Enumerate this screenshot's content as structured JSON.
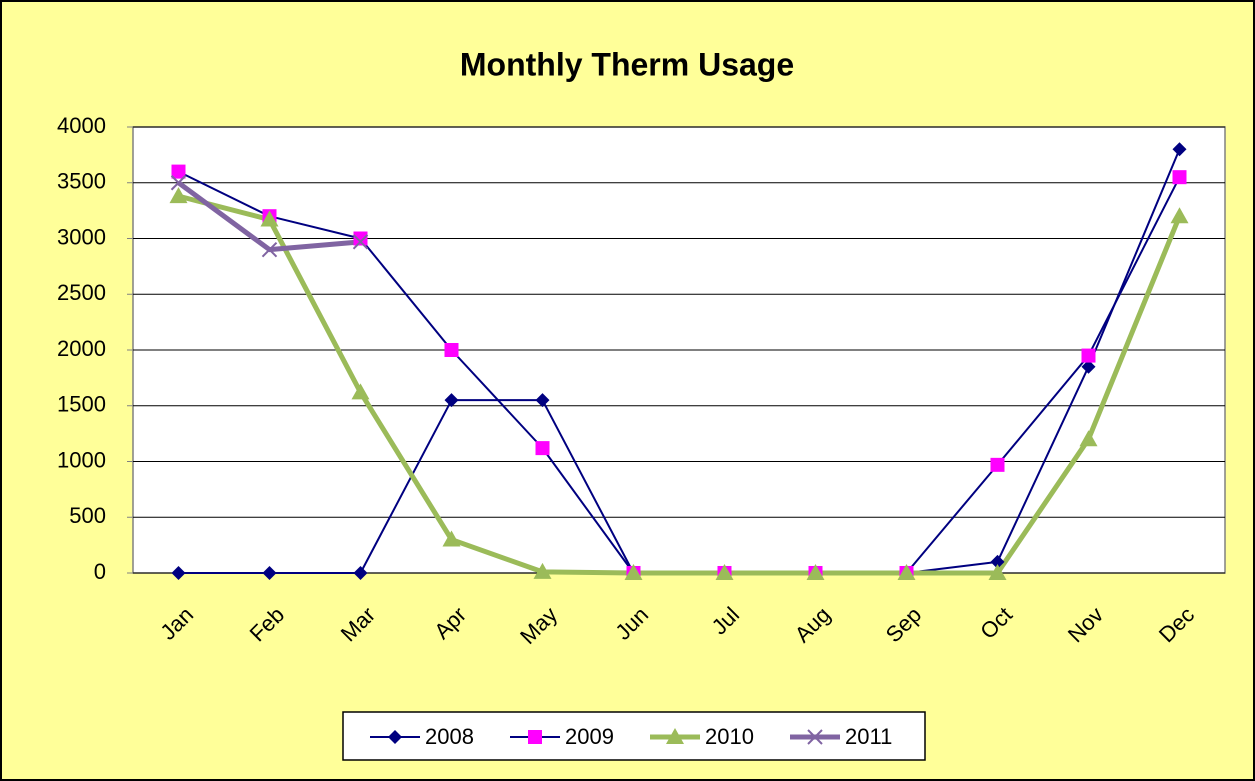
{
  "chart_data": {
    "type": "line",
    "title": "Monthly Therm  Usage",
    "categories": [
      "Jan",
      "Feb",
      "Mar",
      "Apr",
      "May",
      "Jun",
      "Jul",
      "Aug",
      "Sep",
      "Oct",
      "Nov",
      "Dec"
    ],
    "series": [
      {
        "name": "2008",
        "color": "#000080",
        "marker": "diamond",
        "marker_color": "#000080",
        "line_width": 2,
        "values": [
          0,
          0,
          0,
          1550,
          1550,
          0,
          0,
          0,
          0,
          100,
          1850,
          3800
        ]
      },
      {
        "name": "2009",
        "color": "#000080",
        "marker": "square",
        "marker_color": "#ff00ff",
        "line_width": 2,
        "values": [
          3600,
          3200,
          3000,
          2000,
          1120,
          0,
          0,
          0,
          0,
          970,
          1950,
          3550
        ]
      },
      {
        "name": "2010",
        "color": "#9bbb59",
        "marker": "triangle",
        "marker_color": "#9bbb59",
        "line_width": 5,
        "values": [
          3380,
          3170,
          1620,
          300,
          10,
          0,
          0,
          0,
          0,
          0,
          1200,
          3200
        ]
      },
      {
        "name": "2011",
        "color": "#8064a2",
        "marker": "x",
        "marker_color": "#8064a2",
        "line_width": 5,
        "values": [
          3500,
          2900,
          2970,
          null,
          null,
          null,
          null,
          null,
          null,
          null,
          null,
          null
        ]
      }
    ],
    "ylim": [
      0,
      4000
    ],
    "yticks": [
      0,
      500,
      1000,
      1500,
      2000,
      2500,
      3000,
      3500,
      4000
    ],
    "grid": true,
    "legend": "bottom"
  }
}
